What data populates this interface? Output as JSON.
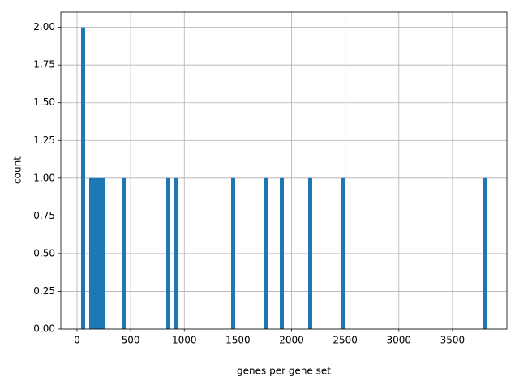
{
  "chart_data": {
    "type": "histogram",
    "xlabel": "genes per gene set",
    "ylabel": "count",
    "bins": [
      38,
      75.8,
      113.6,
      151.4,
      189.2,
      227,
      264.8,
      302.6,
      340.4,
      378.2,
      416,
      453.8,
      491.6,
      529.4,
      567.2,
      605,
      642.8,
      680.6,
      718.4,
      756.2,
      794,
      831.8,
      869.6,
      907.4,
      945.2,
      983,
      1020.8,
      1058.6,
      1096.4,
      1134.2,
      1172,
      1209.8,
      1247.6,
      1285.4,
      1323.2,
      1361,
      1398.8,
      1436.6,
      1474.4,
      1512.2,
      1550,
      1587.8,
      1625.6,
      1663.4,
      1701.2,
      1739,
      1776.8,
      1814.6,
      1852.4,
      1890.2,
      1928,
      1965.8,
      2003.6,
      2041.4,
      2079.2,
      2117,
      2154.8,
      2192.6,
      2230.4,
      2268.2,
      2306,
      2343.8,
      2381.6,
      2419.4,
      2457.2,
      2495,
      2532.8,
      2570.6,
      2608.4,
      2646.2,
      2684,
      2721.8,
      2759.6,
      2797.4,
      2835.2,
      2873,
      2910.8,
      2948.6,
      2986.4,
      3024.2,
      3062,
      3099.8,
      3137.6,
      3175.4,
      3213.2,
      3251,
      3288.8,
      3326.6,
      3364.4,
      3402.2,
      3440,
      3477.8,
      3515.6,
      3553.4,
      3591.2,
      3629,
      3666.8,
      3704.6,
      3742.4,
      3780.2,
      3818
    ],
    "counts": [
      2,
      0,
      1,
      1,
      1,
      1,
      0,
      0,
      0,
      0,
      1,
      0,
      0,
      0,
      0,
      0,
      0,
      0,
      0,
      0,
      0,
      1,
      0,
      1,
      0,
      0,
      0,
      0,
      0,
      0,
      0,
      0,
      0,
      0,
      0,
      0,
      0,
      1,
      0,
      0,
      0,
      0,
      0,
      0,
      0,
      1,
      0,
      0,
      0,
      1,
      0,
      0,
      0,
      0,
      0,
      0,
      1,
      0,
      0,
      0,
      0,
      0,
      0,
      0,
      1,
      0,
      0,
      0,
      0,
      0,
      0,
      0,
      0,
      0,
      0,
      0,
      0,
      0,
      0,
      0,
      0,
      0,
      0,
      0,
      0,
      0,
      0,
      0,
      0,
      0,
      0,
      0,
      0,
      0,
      0,
      0,
      0,
      0,
      0,
      1
    ],
    "color": "#1f77b4",
    "xlim": [
      -151,
      4007
    ],
    "xticks": [
      0,
      500,
      1000,
      1500,
      2000,
      2500,
      3000,
      3500
    ],
    "ylim": [
      0,
      2.1
    ],
    "yticks": [
      {
        "value": 0,
        "label": "0.00"
      },
      {
        "value": 0.25,
        "label": "0.25"
      },
      {
        "value": 0.5,
        "label": "0.50"
      },
      {
        "value": 0.75,
        "label": "0.75"
      },
      {
        "value": 1,
        "label": "1.00"
      },
      {
        "value": 1.25,
        "label": "1.25"
      },
      {
        "value": 1.5,
        "label": "1.50"
      },
      {
        "value": 1.75,
        "label": "1.75"
      },
      {
        "value": 2,
        "label": "2.00"
      }
    ],
    "grid": true
  }
}
